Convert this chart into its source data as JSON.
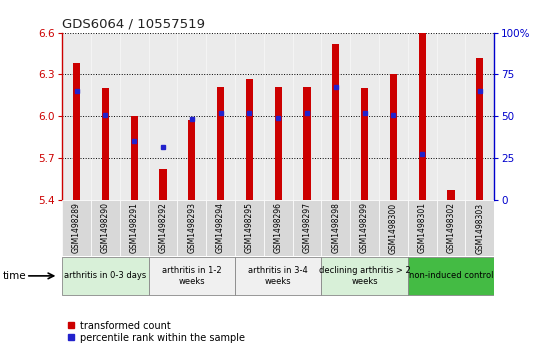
{
  "title": "GDS6064 / 10557519",
  "samples": [
    "GSM1498289",
    "GSM1498290",
    "GSM1498291",
    "GSM1498292",
    "GSM1498293",
    "GSM1498294",
    "GSM1498295",
    "GSM1498296",
    "GSM1498297",
    "GSM1498298",
    "GSM1498299",
    "GSM1498300",
    "GSM1498301",
    "GSM1498302",
    "GSM1498303"
  ],
  "bar_values": [
    6.38,
    6.2,
    6.0,
    5.62,
    5.97,
    6.21,
    6.27,
    6.21,
    6.21,
    6.52,
    6.2,
    6.3,
    6.6,
    5.47,
    6.42
  ],
  "dot_values": [
    6.18,
    6.01,
    5.82,
    5.78,
    5.98,
    6.02,
    6.02,
    5.99,
    6.02,
    6.21,
    6.02,
    6.01,
    5.73,
    null,
    6.18
  ],
  "bar_bottom": 5.4,
  "ylim_left": [
    5.4,
    6.6
  ],
  "ylim_right": [
    0,
    100
  ],
  "yticks_left": [
    5.4,
    5.7,
    6.0,
    6.3,
    6.6
  ],
  "yticks_right": [
    0,
    25,
    50,
    75,
    100
  ],
  "bar_color": "#cc0000",
  "dot_color": "#2222cc",
  "groups": [
    {
      "label": "arthritis in 0-3 days",
      "start": 0,
      "end": 3,
      "color": "#d8f0d8"
    },
    {
      "label": "arthritis in 1-2\nweeks",
      "start": 3,
      "end": 6,
      "color": "#f0f0f0"
    },
    {
      "label": "arthritis in 3-4\nweeks",
      "start": 6,
      "end": 9,
      "color": "#f0f0f0"
    },
    {
      "label": "declining arthritis > 2\nweeks",
      "start": 9,
      "end": 12,
      "color": "#d8f0d8"
    },
    {
      "label": "non-induced control",
      "start": 12,
      "end": 15,
      "color": "#44bb44"
    }
  ],
  "xlabel": "time",
  "legend_red": "transformed count",
  "legend_blue": "percentile rank within the sample",
  "title_color": "#222222",
  "left_tick_color": "#cc0000",
  "right_tick_color": "#0000cc",
  "tick_bg_color": "#d8d8d8"
}
